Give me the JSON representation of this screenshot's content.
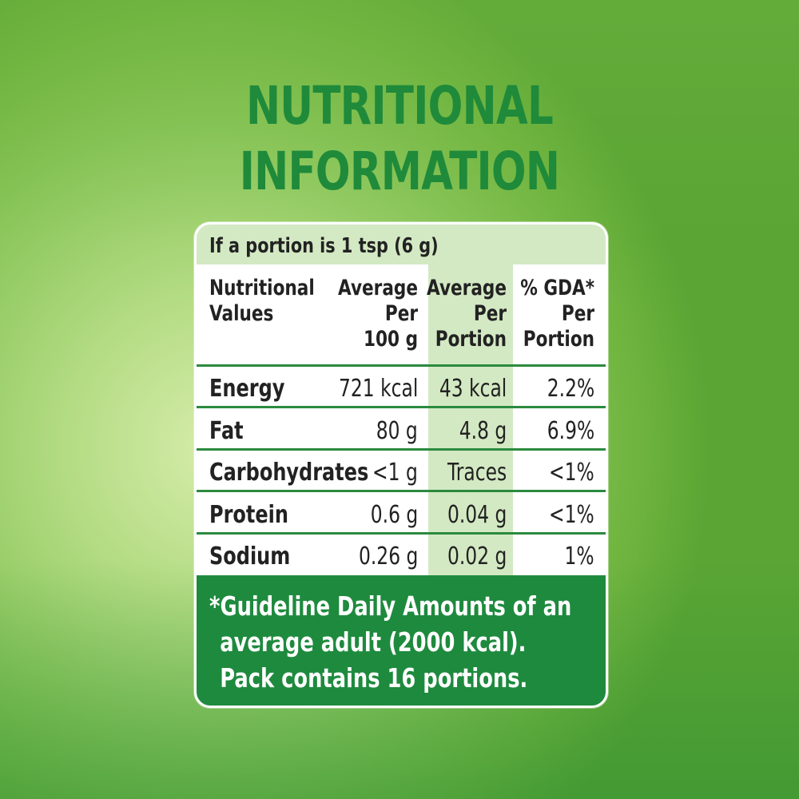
{
  "title": {
    "line1": "NUTRITIONAL",
    "line2": "INFORMATION"
  },
  "table": {
    "portion_note": "If a portion is 1 tsp (6 g)",
    "headers": {
      "nutritional_values": [
        "Nutritional",
        "Values"
      ],
      "avg_per_100g": [
        "Average",
        "Per",
        "100 g"
      ],
      "avg_per_portion": [
        "Average",
        "Per",
        "Portion"
      ],
      "gda_per_portion": [
        "% GDA*",
        "Per",
        "Portion"
      ]
    },
    "rows": [
      {
        "name": "Energy",
        "per_100g": "721 kcal",
        "per_portion": "43 kcal",
        "gda": "2.2%"
      },
      {
        "name": "Fat",
        "per_100g": "80 g",
        "per_portion": "4.8 g",
        "gda": "6.9%"
      },
      {
        "name": "Carbohydrates",
        "per_100g": "<1 g",
        "per_portion": "Traces",
        "gda": "<1%"
      },
      {
        "name": "Protein",
        "per_100g": "0.6 g",
        "per_portion": "0.04 g",
        "gda": "<1%"
      },
      {
        "name": "Sodium",
        "per_100g": "0.26 g",
        "per_portion": "0.02 g",
        "gda": "1%"
      }
    ]
  },
  "footer": {
    "line1": "*Guideline Daily Amounts of an",
    "line2": "average adult (2000 kcal).",
    "line3": "Pack contains 16 portions."
  },
  "colors": {
    "title_green": "#1f8a3a",
    "footer_green": "#1e8a3e",
    "shade_green": "#d3e9c3"
  }
}
